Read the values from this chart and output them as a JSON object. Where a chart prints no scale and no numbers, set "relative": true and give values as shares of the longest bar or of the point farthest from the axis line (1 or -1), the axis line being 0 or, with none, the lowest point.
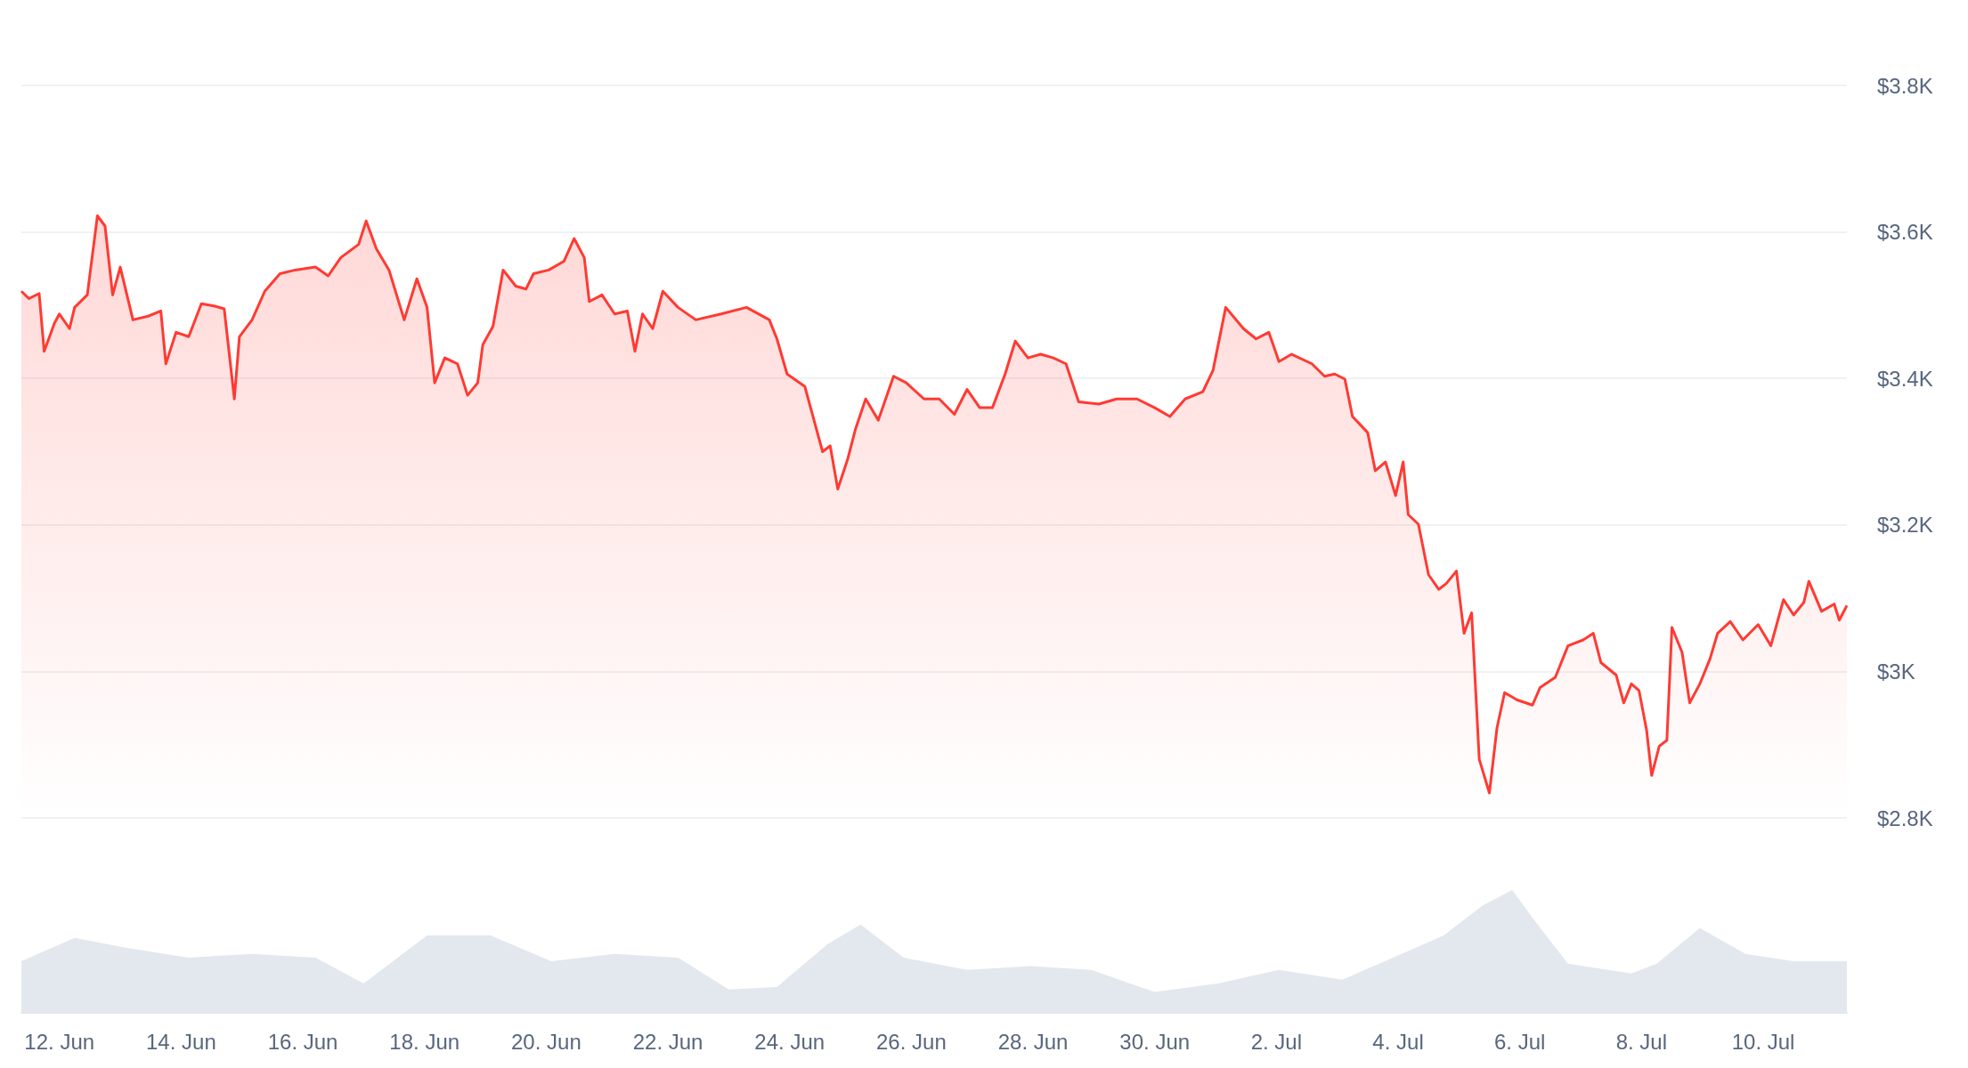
{
  "chart_data": [
    {
      "type": "area",
      "tick_labels": "y",
      "grid": "y",
      "marker": "none",
      "xlim": [
        "--06-11T09:00",
        "--07-11T09:00"
      ],
      "xticks": [
        {
          "value": "--06-12",
          "label": "12. Jun"
        },
        {
          "value": "--06-14",
          "label": "14. Jun"
        },
        {
          "value": "--06-16",
          "label": "16. Jun"
        },
        {
          "value": "--06-18",
          "label": "18. Jun"
        },
        {
          "value": "--06-20",
          "label": "20. Jun"
        },
        {
          "value": "--06-22",
          "label": "22. Jun"
        },
        {
          "value": "--06-24",
          "label": "24. Jun"
        },
        {
          "value": "--06-26",
          "label": "26. Jun"
        },
        {
          "value": "--06-28",
          "label": "28. Jun"
        },
        {
          "value": "--06-30",
          "label": "30. Jun"
        },
        {
          "value": "--07-02",
          "label": "2. Jul"
        },
        {
          "value": "--07-04",
          "label": "4. Jul"
        },
        {
          "value": "--07-06",
          "label": "6. Jul"
        },
        {
          "value": "--07-08",
          "label": "8. Jul"
        },
        {
          "value": "--07-10",
          "label": "10. Jul"
        }
      ],
      "ylim": [
        2800,
        3800
      ],
      "yticks": [
        {
          "value": 2800,
          "label": "$2.8K"
        },
        {
          "value": 3000,
          "label": "$3K"
        },
        {
          "value": 3200,
          "label": "$3.2K"
        },
        {
          "value": 3400,
          "label": "$3.4K"
        },
        {
          "value": 3600,
          "label": "$3.6K"
        },
        {
          "value": 3800,
          "label": "$3.8K"
        }
      ],
      "series": [
        {
          "color": "#ff3a33",
          "x": [
            "--06-11T09:00",
            "--06-11T12:00",
            "--06-11T16:00",
            "--06-11T18:00",
            "--06-11T22:00",
            "--06-12T00:00",
            "--06-12T04:00",
            "--06-12T06:00",
            "--06-12T11:00",
            "--06-12T15:00",
            "--06-12T18:00",
            "--06-12T21:00",
            "--06-13T00:00",
            "--06-13T05:00",
            "--06-13T11:00",
            "--06-13T16:00",
            "--06-13T18:00",
            "--06-13T22:00",
            "--06-14T03:00",
            "--06-14T08:00",
            "--06-14T13:00",
            "--06-14T17:00",
            "--06-14T21:00",
            "--06-14T23:00",
            "--06-15T04:00",
            "--06-15T09:00",
            "--06-15T15:00",
            "--06-15T21:00",
            "--06-16T05:00",
            "--06-16T10:00",
            "--06-16T15:00",
            "--06-16T22:00",
            "--06-17T01:00",
            "--06-17T05:00",
            "--06-17T10:00",
            "--06-17T16:00",
            "--06-17T21:00",
            "--06-18T01:00",
            "--06-18T04:00",
            "--06-18T08:00",
            "--06-18T13:00",
            "--06-18T17:00",
            "--06-18T21:00",
            "--06-18T23:00",
            "--06-19T03:00",
            "--06-19T07:00",
            "--06-19T12:00",
            "--06-19T16:00",
            "--06-19T19:00",
            "--06-20T01:00",
            "--06-20T07:00",
            "--06-20T11:00",
            "--06-20T15:00",
            "--06-20T17:00",
            "--06-20T22:00",
            "--06-21T03:00",
            "--06-21T08:00",
            "--06-21T11:00",
            "--06-21T14:00",
            "--06-21T18:00",
            "--06-21T22:00",
            "--06-22T04:00",
            "--06-22T11:00",
            "--06-22T21:00",
            "--06-23T07:00",
            "--06-23T16:00",
            "--06-23T19:00",
            "--06-23T23:00",
            "--06-24T06:00",
            "--06-24T09:00",
            "--06-24T13:00",
            "--06-24T16:00",
            "--06-24T19:00",
            "--06-24T23:00",
            "--06-25T02:00",
            "--06-25T06:00",
            "--06-25T11:00",
            "--06-25T17:00",
            "--06-25T22:00",
            "--06-26T05:00",
            "--06-26T11:00",
            "--06-26T17:00",
            "--06-26T22:00",
            "--06-27T03:00",
            "--06-27T08:00",
            "--06-27T13:00",
            "--06-27T17:00",
            "--06-27T22:00",
            "--06-28T03:00",
            "--06-28T08:00",
            "--06-28T13:00",
            "--06-28T18:00",
            "--06-29T02:00",
            "--06-29T09:00",
            "--06-29T17:00",
            "--06-30T00:00",
            "--06-30T06:00",
            "--06-30T12:00",
            "--06-30T19:00",
            "--06-30T23:00",
            "--07-01T04:00",
            "--07-01T11:00",
            "--07-01T16:00",
            "--07-01T21:00",
            "--07-02T01:00",
            "--07-02T06:00",
            "--07-02T14:00",
            "--07-02T19:00",
            "--07-02T23:00",
            "--07-03T03:00",
            "--07-03T06:00",
            "--07-03T12:00",
            "--07-03T15:00",
            "--07-03T19:00",
            "--07-03T23:00",
            "--07-04T02:00",
            "--07-04T04:00",
            "--07-04T08:00",
            "--07-04T12:00",
            "--07-04T16:00",
            "--07-04T19:00",
            "--07-04T23:00",
            "--07-05T02:00",
            "--07-05T05:00",
            "--07-05T08:00",
            "--07-05T12:00",
            "--07-05T15:00",
            "--07-05T18:00",
            "--07-05T23:00",
            "--07-06T05:00",
            "--07-06T08:00",
            "--07-06T14:00",
            "--07-06T19:00",
            "--07-07T01:00",
            "--07-07T05:00",
            "--07-07T08:00",
            "--07-07T14:00",
            "--07-07T17:00",
            "--07-07T20:00",
            "--07-07T23:00",
            "--07-08T02:00",
            "--07-08T04:00",
            "--07-08T07:00",
            "--07-08T10:00",
            "--07-08T12:00",
            "--07-08T16:00",
            "--07-08T19:00",
            "--07-08T23:00",
            "--07-09T03:00",
            "--07-09T06:00",
            "--07-09T11:00",
            "--07-09T16:00",
            "--07-09T22:00",
            "--07-10T03:00",
            "--07-10T08:00",
            "--07-10T12:00",
            "--07-10T16:00",
            "--07-10T18:00",
            "--07-10T23:00",
            "--07-11T04:00",
            "--07-11T06:00",
            "--07-11T09:00"
          ],
          "values": [
            3519,
            3509,
            3516,
            3437,
            3475,
            3488,
            3468,
            3497,
            3514,
            3622,
            3608,
            3514,
            3552,
            3480,
            3485,
            3492,
            3420,
            3463,
            3457,
            3502,
            3499,
            3495,
            3372,
            3457,
            3480,
            3519,
            3543,
            3548,
            3552,
            3540,
            3565,
            3583,
            3615,
            3577,
            3548,
            3480,
            3536,
            3497,
            3394,
            3428,
            3420,
            3377,
            3394,
            3446,
            3471,
            3548,
            3526,
            3522,
            3543,
            3548,
            3560,
            3591,
            3565,
            3505,
            3514,
            3488,
            3492,
            3437,
            3488,
            3468,
            3519,
            3497,
            3480,
            3488,
            3497,
            3480,
            3454,
            3406,
            3389,
            3351,
            3300,
            3308,
            3249,
            3291,
            3331,
            3372,
            3343,
            3403,
            3394,
            3372,
            3372,
            3351,
            3385,
            3360,
            3360,
            3406,
            3451,
            3428,
            3433,
            3428,
            3420,
            3368,
            3365,
            3372,
            3372,
            3360,
            3348,
            3372,
            3382,
            3411,
            3497,
            3468,
            3454,
            3463,
            3423,
            3433,
            3420,
            3403,
            3406,
            3399,
            3348,
            3326,
            3274,
            3286,
            3240,
            3286,
            3214,
            3201,
            3132,
            3112,
            3120,
            3137,
            3052,
            3080,
            2880,
            2834,
            2923,
            2971,
            2961,
            2954,
            2978,
            2992,
            3035,
            3043,
            3052,
            3012,
            2995,
            2957,
            2983,
            2974,
            2920,
            2858,
            2898,
            2906,
            3060,
            3026,
            2957,
            2983,
            3017,
            3052,
            3068,
            3043,
            3064,
            3035,
            3098,
            3077,
            3094,
            3123,
            3082,
            3092,
            3070,
            3090
          ]
        }
      ]
    },
    {
      "type": "area",
      "relative": true,
      "tick_labels": "x",
      "marker": "none",
      "xlim": [
        "--06-11T09:00",
        "--07-11T09:00"
      ],
      "xticks": [
        {
          "value": "--06-12",
          "label": "12. Jun"
        },
        {
          "value": "--06-14",
          "label": "14. Jun"
        },
        {
          "value": "--06-16",
          "label": "16. Jun"
        },
        {
          "value": "--06-18",
          "label": "18. Jun"
        },
        {
          "value": "--06-20",
          "label": "20. Jun"
        },
        {
          "value": "--06-22",
          "label": "22. Jun"
        },
        {
          "value": "--06-24",
          "label": "24. Jun"
        },
        {
          "value": "--06-26",
          "label": "26. Jun"
        },
        {
          "value": "--06-28",
          "label": "28. Jun"
        },
        {
          "value": "--06-30",
          "label": "30. Jun"
        },
        {
          "value": "--07-02",
          "label": "2. Jul"
        },
        {
          "value": "--07-04",
          "label": "4. Jul"
        },
        {
          "value": "--07-06",
          "label": "6. Jul"
        },
        {
          "value": "--07-08",
          "label": "8. Jul"
        },
        {
          "value": "--07-10",
          "label": "10. Jul"
        }
      ],
      "series": [
        {
          "color": "#e3e8ef",
          "x": [
            "--06-11T09:00",
            "--06-12T06:00",
            "--06-13T02:00",
            "--06-14T03:00",
            "--06-15T04:00",
            "--06-16T05:00",
            "--06-17T00:00",
            "--06-18T01:00",
            "--06-19T02:00",
            "--06-20T02:00",
            "--06-21T03:00",
            "--06-22T04:00",
            "--06-23T00:00",
            "--06-23T19:00",
            "--06-24T15:00",
            "--06-25T04:00",
            "--06-25T21:00",
            "--06-26T22:00",
            "--06-27T23:00",
            "--06-28T23:00",
            "--06-30T00:00",
            "--07-01T01:00",
            "--07-02T01:00",
            "--07-03T02:00",
            "--07-03T22:00",
            "--07-04T18:00",
            "--07-05T09:00",
            "--07-05T21:00",
            "--07-06T07:00",
            "--07-06T19:00",
            "--07-07T20:00",
            "--07-08T06:00",
            "--07-08T23:00",
            "--07-09T17:00",
            "--07-10T12:00",
            "--07-11T09:00"
          ],
          "values": [
            0.42,
            0.61,
            0.53,
            0.45,
            0.48,
            0.45,
            0.24,
            0.63,
            0.63,
            0.42,
            0.48,
            0.45,
            0.19,
            0.21,
            0.56,
            0.72,
            0.45,
            0.35,
            0.38,
            0.35,
            0.17,
            0.24,
            0.35,
            0.27,
            0.45,
            0.63,
            0.87,
            1.0,
            0.72,
            0.4,
            0.32,
            0.4,
            0.69,
            0.48,
            0.42,
            0.42
          ]
        }
      ]
    }
  ]
}
